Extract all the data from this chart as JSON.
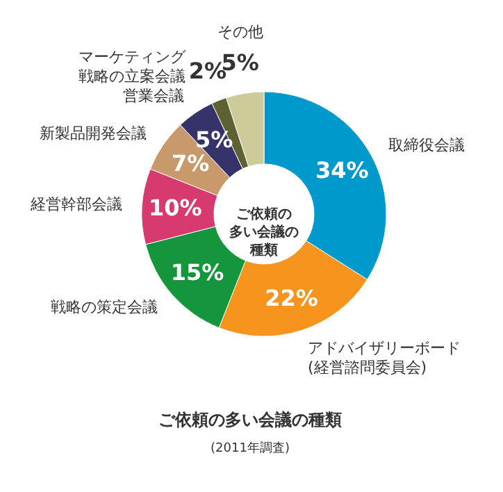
{
  "chart_data": {
    "type": "donut",
    "title": "ご依頼の多い会議の種類",
    "categories": [
      "取締役会議",
      "アドバイザリーボード(経営諮問委員会)",
      "戦略の策定会議",
      "経営幹部会議",
      "新製品開発会議",
      "営業会議",
      "マーケティング戦略の立案会議",
      "その他"
    ],
    "values": [
      34,
      22,
      15,
      10,
      7,
      5,
      2,
      5
    ],
    "value_labels": [
      "34%",
      "22%",
      "15%",
      "10%",
      "7%",
      "5%",
      "2%",
      "5%"
    ],
    "colors": [
      "#0099cc",
      "#f7941d",
      "#16963c",
      "#d63a6e",
      "#c8996b",
      "#35336a",
      "#5e6233",
      "#cccc99"
    ],
    "annotations": [
      "ご依頼の多い会議の種類",
      "(2011年調査)"
    ]
  }
}
